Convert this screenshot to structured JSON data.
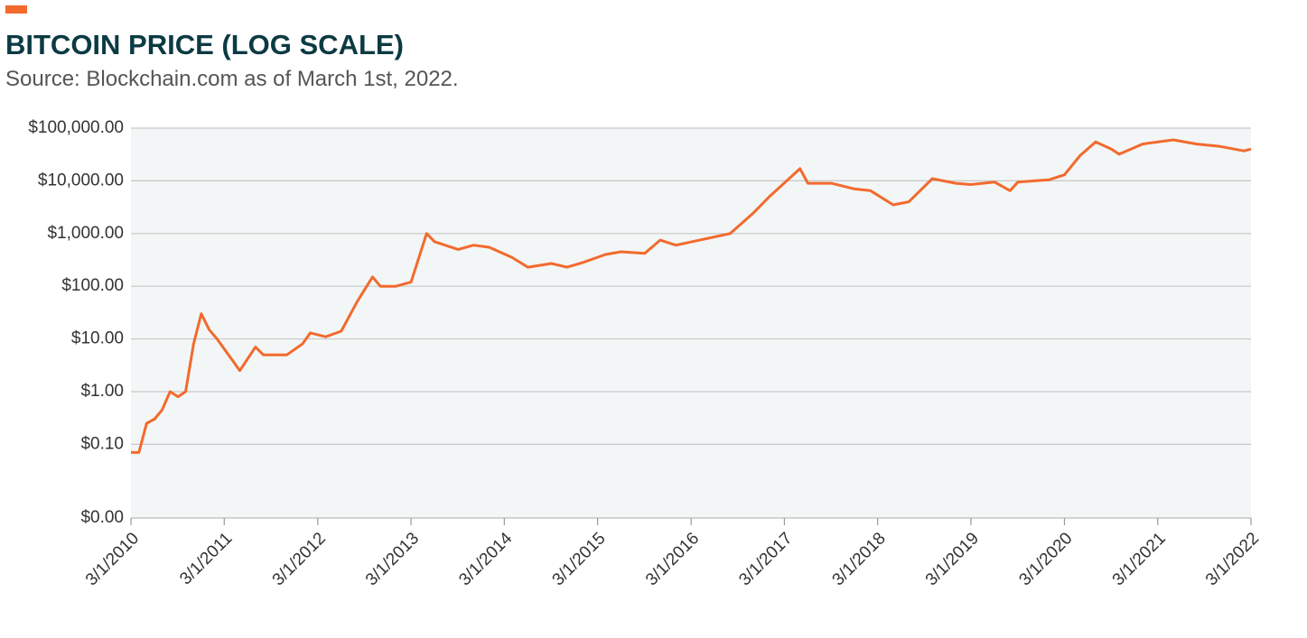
{
  "chart_data": {
    "type": "line",
    "title": "BITCOIN PRICE (LOG SCALE)",
    "subtitle": "Source: Blockchain.com as of March 1st, 2022.",
    "log_scale": true,
    "grid": true,
    "x": [
      "2010-03-01",
      "2010-04-01",
      "2010-05-01",
      "2010-06-01",
      "2010-07-01",
      "2010-08-01",
      "2010-09-01",
      "2010-10-01",
      "2010-11-01",
      "2010-12-01",
      "2011-01-01",
      "2011-02-01",
      "2011-04-01",
      "2011-05-01",
      "2011-07-01",
      "2011-08-01",
      "2011-11-01",
      "2012-01-01",
      "2012-02-01",
      "2012-04-01",
      "2012-06-01",
      "2012-08-01",
      "2012-10-01",
      "2012-11-01",
      "2013-01-01",
      "2013-03-01",
      "2013-05-01",
      "2013-06-01",
      "2013-09-01",
      "2013-11-01",
      "2014-01-01",
      "2014-04-01",
      "2014-06-01",
      "2014-09-01",
      "2014-11-01",
      "2015-01-01",
      "2015-04-01",
      "2015-06-01",
      "2015-09-01",
      "2015-11-01",
      "2016-01-01",
      "2016-05-01",
      "2016-08-01",
      "2016-11-01",
      "2017-01-01",
      "2017-05-01",
      "2017-06-01",
      "2017-09-01",
      "2017-12-01",
      "2018-02-01",
      "2018-05-01",
      "2018-07-01",
      "2018-10-01",
      "2019-01-01",
      "2019-03-01",
      "2019-06-01",
      "2019-08-01",
      "2019-09-01",
      "2020-01-01",
      "2020-03-01",
      "2020-05-01",
      "2020-07-01",
      "2020-09-01",
      "2020-10-01",
      "2021-01-01",
      "2021-05-01",
      "2021-08-01",
      "2021-11-01",
      "2022-02-01",
      "2022-03-01"
    ],
    "series": [
      {
        "name": "Bitcoin price",
        "color": "#f26a2e",
        "values": [
          0.07,
          0.07,
          0.25,
          0.3,
          0.45,
          1.0,
          0.8,
          1.0,
          8,
          30,
          15,
          10,
          4,
          2.5,
          7,
          5,
          5,
          8,
          13,
          11,
          14,
          50,
          150,
          100,
          100,
          120,
          1000,
          700,
          500,
          600,
          550,
          350,
          230,
          270,
          230,
          280,
          400,
          450,
          420,
          750,
          600,
          800,
          1000,
          2500,
          5000,
          17000,
          9000,
          9000,
          7000,
          6500,
          3500,
          4000,
          11000,
          9000,
          8500,
          9500,
          6500,
          9500,
          10500,
          13000,
          30000,
          55000,
          40000,
          32000,
          50000,
          60000,
          50000,
          45000,
          37000,
          40000
        ]
      }
    ],
    "ylim": [
      0.004,
      100000
    ],
    "yticks": [
      {
        "value": 0.004,
        "label": "$0.00"
      },
      {
        "value": 0.1,
        "label": "$0.10"
      },
      {
        "value": 1,
        "label": "$1.00"
      },
      {
        "value": 10,
        "label": "$10.00"
      },
      {
        "value": 100,
        "label": "$100.00"
      },
      {
        "value": 1000,
        "label": "$1,000.00"
      },
      {
        "value": 10000,
        "label": "$10,000.00"
      },
      {
        "value": 100000,
        "label": "$100,000.00"
      }
    ],
    "xlim": [
      "2010-03-01",
      "2022-03-01"
    ],
    "xticks": [
      {
        "value": "2010-03-01",
        "label": "3/1/2010"
      },
      {
        "value": "2011-03-01",
        "label": "3/1/2011"
      },
      {
        "value": "2012-03-01",
        "label": "3/1/2012"
      },
      {
        "value": "2013-03-01",
        "label": "3/1/2013"
      },
      {
        "value": "2014-03-01",
        "label": "3/1/2014"
      },
      {
        "value": "2015-03-01",
        "label": "3/1/2015"
      },
      {
        "value": "2016-03-01",
        "label": "3/1/2016"
      },
      {
        "value": "2017-03-01",
        "label": "3/1/2017"
      },
      {
        "value": "2018-03-01",
        "label": "3/1/2018"
      },
      {
        "value": "2019-03-01",
        "label": "3/1/2019"
      },
      {
        "value": "2020-03-01",
        "label": "3/1/2020"
      },
      {
        "value": "2021-03-01",
        "label": "3/1/2021"
      },
      {
        "value": "2022-03-01",
        "label": "3/1/2022"
      }
    ]
  }
}
